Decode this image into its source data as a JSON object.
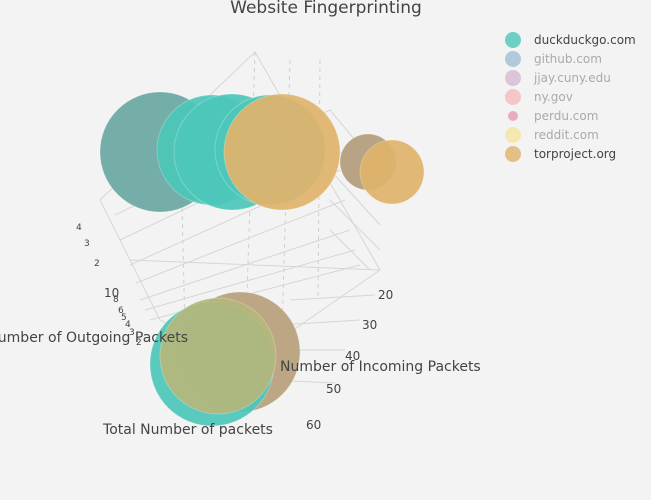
{
  "chart_data": {
    "type": "scatter3d",
    "title": "Website Fingerprinting",
    "axes": {
      "x": {
        "title": "Number of Incoming Packets",
        "ticks": [
          "20",
          "30",
          "40",
          "50",
          "60"
        ]
      },
      "y": {
        "title": "Number of Outgoing Packets",
        "ticks": [
          "2",
          "3",
          "4",
          "5",
          "6",
          "8",
          "10"
        ]
      },
      "z": {
        "title": "Total Number of packets",
        "ticks": [
          "2",
          "3",
          "4"
        ]
      }
    },
    "legend_position": "top-right",
    "series": [
      {
        "name": "duckduckgo.com",
        "color": "#4cc7b8",
        "visible": true,
        "points": [
          {
            "x": 35,
            "y": 4,
            "z": 4,
            "size": 0.9
          },
          {
            "x": 42,
            "y": 4,
            "z": 4,
            "size": 0.85
          },
          {
            "x": 30,
            "y": 2,
            "z": 1,
            "size": 0.8
          },
          {
            "x": 28,
            "y": 2,
            "z": 1,
            "size": 0.7
          }
        ]
      },
      {
        "name": "github.com",
        "color": "#a9c4d8",
        "visible": false,
        "points": []
      },
      {
        "name": "jjay.cuny.edu",
        "color": "#d7c0d6",
        "visible": false,
        "points": []
      },
      {
        "name": "ny.gov",
        "color": "#f6c1c1",
        "visible": false,
        "points": []
      },
      {
        "name": "perdu.com",
        "color": "#e6a6b8",
        "visible": false,
        "points": []
      },
      {
        "name": "reddit.com",
        "color": "#f3e8a8",
        "visible": false,
        "points": []
      },
      {
        "name": "torproject.org",
        "color": "#e0b36a",
        "visible": true,
        "points": [
          {
            "x": 38,
            "y": 4,
            "z": 4,
            "size": 0.78
          },
          {
            "x": 20,
            "y": 4,
            "z": 4,
            "size": 0.55
          },
          {
            "x": 18,
            "y": 4,
            "z": 4,
            "size": 0.42
          },
          {
            "x": 40,
            "y": 2,
            "z": 1,
            "size": 0.82
          },
          {
            "x": 38,
            "y": 2,
            "z": 1,
            "size": 0.72
          }
        ]
      }
    ]
  }
}
